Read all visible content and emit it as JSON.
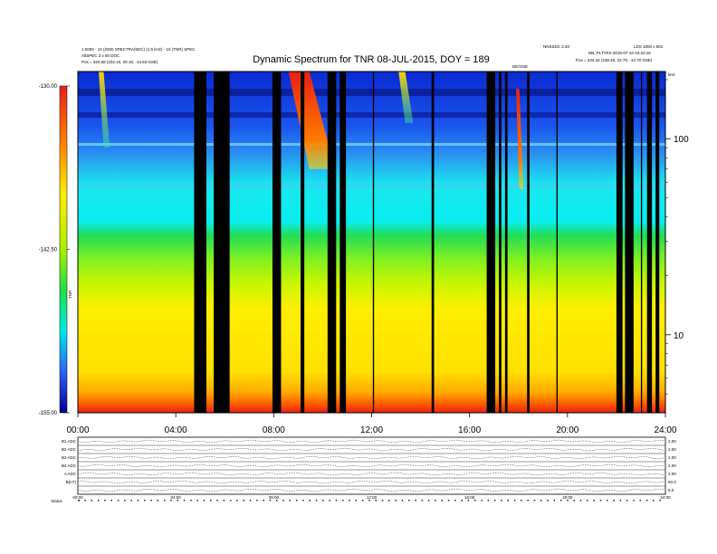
{
  "chart_data": {
    "type": "heatmap",
    "title": "Dynamic Spectrum for TNR 08-JUL-2015, DOY = 189",
    "header_left": [
      "1.5000 - 10 (2000 SPECTRA/SEC) (1.5 kHz) - 10 (TNR) SPEC",
      "AltSPEC 3 x 80 DOC",
      "Pos = 320.58 (232.15, 20.18, -14.53 GSE)"
    ],
    "header_right": [
      "NNSSDC 2.40",
      "LDS 1000 x 501",
      "DB_PLTTRS 2015-07-10 04:22:16",
      "Pos = 324.32 (238.40, 22.79, -14.70 GSE)"
    ],
    "marker_label": "DE/GSE",
    "colorbar": {
      "label": "TNR",
      "ticks": [
        "-130.00",
        "-142.50",
        "-155.00"
      ],
      "range": [
        -155,
        -130
      ]
    },
    "x_axis": {
      "ticks": [
        "00:00",
        "04:00",
        "08:00",
        "12:00",
        "16:00",
        "20:00",
        "24:00"
      ],
      "range_hours": [
        0,
        24
      ]
    },
    "y_axis": {
      "scale": "log",
      "ticks": [
        "100",
        "10"
      ],
      "unit_label": "kHz",
      "range_khz": [
        4,
        220
      ]
    },
    "data_gaps_hours": [
      [
        4.75,
        5.25
      ],
      [
        5.55,
        6.2
      ],
      [
        7.95,
        8.3
      ],
      [
        9.1,
        9.25
      ],
      [
        10.2,
        10.55
      ],
      [
        10.7,
        10.95
      ],
      [
        12.05,
        12.1
      ],
      [
        14.45,
        14.55
      ],
      [
        16.7,
        17.05
      ],
      [
        17.2,
        17.3
      ],
      [
        17.45,
        17.55
      ],
      [
        18.35,
        18.45
      ],
      [
        19.55,
        19.6
      ],
      [
        22.0,
        22.25
      ],
      [
        22.35,
        22.7
      ],
      [
        23.0,
        23.05
      ],
      [
        23.25,
        23.45
      ],
      [
        23.6,
        23.75
      ]
    ],
    "bursts": [
      {
        "start_h": 8.6,
        "end_h": 10.5,
        "top_khz": 220,
        "bottom_khz": 70,
        "level": "peak"
      },
      {
        "start_h": 17.9,
        "end_h": 18.2,
        "top_khz": 180,
        "bottom_khz": 55,
        "level": "peak"
      },
      {
        "start_h": 0.85,
        "end_h": 1.3,
        "top_khz": 220,
        "bottom_khz": 90,
        "level": "moderate"
      },
      {
        "start_h": 13.1,
        "end_h": 13.7,
        "top_khz": 220,
        "bottom_khz": 120,
        "level": "moderate"
      }
    ],
    "panel_rows": [
      {
        "label": "B1 ADC",
        "right": "2.00"
      },
      {
        "label": "B2 ADC",
        "right": "2.00"
      },
      {
        "label": "B3 ADC",
        "right": "2.00"
      },
      {
        "label": "B4 ADC",
        "right": "2.00"
      },
      {
        "label": "A ADC",
        "right": "2.00"
      },
      {
        "label": "B(nT)",
        "right": "50.0"
      },
      {
        "label": "",
        "right": "5.0"
      }
    ],
    "panel_x_ticks": [
      "00:00",
      "04:00",
      "08:00",
      "12:00",
      "16:00",
      "20:00",
      "24:00"
    ],
    "panel_status_label": "Status"
  }
}
